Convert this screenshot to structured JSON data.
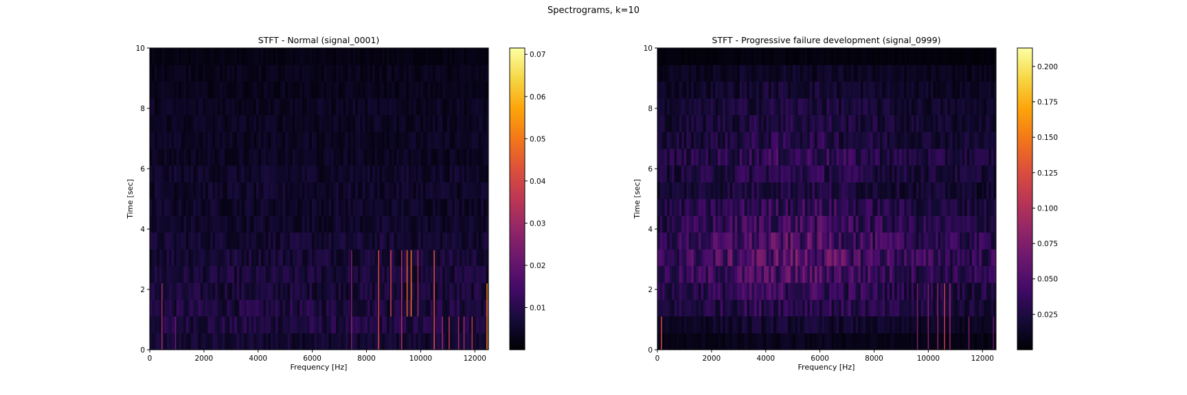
{
  "figure": {
    "title": "Spectrograms, k=10"
  },
  "chart_data": [
    {
      "type": "heatmap",
      "title": "STFT - Normal (signal_0001)",
      "xlabel": "Frequency [Hz]",
      "ylabel": "Time [sec]",
      "xlim": [
        0,
        12500
      ],
      "ylim": [
        0,
        10
      ],
      "xticks": [
        0,
        2000,
        4000,
        6000,
        8000,
        10000,
        12000
      ],
      "yticks": [
        0,
        2,
        4,
        6,
        8,
        10
      ],
      "colormap": "inferno",
      "colorbar": {
        "min": 0,
        "max": 0.0715,
        "ticks": [
          0.01,
          0.02,
          0.03,
          0.04,
          0.05,
          0.06,
          0.07
        ],
        "tick_labels": [
          "0.01",
          "0.02",
          "0.03",
          "0.04",
          "0.05",
          "0.06",
          "0.07"
        ]
      },
      "time_bins": [
        0.28,
        0.83,
        1.39,
        1.94,
        2.5,
        3.06,
        3.61,
        4.17,
        4.72,
        5.28,
        5.83,
        6.39,
        6.94,
        7.5,
        8.06,
        8.61,
        9.17,
        9.72
      ],
      "time_profile": [
        0.006,
        0.008,
        0.008,
        0.007,
        0.007,
        0.007,
        0.006,
        0.005,
        0.005,
        0.005,
        0.005,
        0.004,
        0.004,
        0.004,
        0.004,
        0.003,
        0.003,
        0.002
      ],
      "peaks": [
        {
          "freq": 450,
          "t0": 0,
          "t1": 2.2,
          "value": 0.03
        },
        {
          "freq": 950,
          "t0": 0,
          "t1": 1.1,
          "value": 0.022
        },
        {
          "freq": 7450,
          "t0": 0,
          "t1": 3.3,
          "value": 0.025
        },
        {
          "freq": 8450,
          "t0": 0,
          "t1": 3.3,
          "value": 0.04
        },
        {
          "freq": 8900,
          "t0": 1.1,
          "t1": 3.3,
          "value": 0.038
        },
        {
          "freq": 9300,
          "t0": 0,
          "t1": 3.3,
          "value": 0.032
        },
        {
          "freq": 9500,
          "t0": 1.1,
          "t1": 3.3,
          "value": 0.045
        },
        {
          "freq": 9650,
          "t0": 1.1,
          "t1": 3.3,
          "value": 0.048
        },
        {
          "freq": 9900,
          "t0": 1.1,
          "t1": 3.3,
          "value": 0.03
        },
        {
          "freq": 10500,
          "t0": 0,
          "t1": 3.3,
          "value": 0.042
        },
        {
          "freq": 10800,
          "t0": 0,
          "t1": 1.1,
          "value": 0.03
        },
        {
          "freq": 11050,
          "t0": 0,
          "t1": 1.1,
          "value": 0.035
        },
        {
          "freq": 11400,
          "t0": 0,
          "t1": 1.1,
          "value": 0.03
        },
        {
          "freq": 11600,
          "t0": 0,
          "t1": 1.1,
          "value": 0.03
        },
        {
          "freq": 11900,
          "t0": 0,
          "t1": 1.1,
          "value": 0.035
        },
        {
          "freq": 12450,
          "t0": 0,
          "t1": 2.2,
          "value": 0.05
        }
      ]
    },
    {
      "type": "heatmap",
      "title": "STFT - Progressive failure development (signal_0999)",
      "xlabel": "Frequency [Hz]",
      "ylabel": "Time [sec]",
      "xlim": [
        0,
        12500
      ],
      "ylim": [
        0,
        10
      ],
      "xticks": [
        0,
        2000,
        4000,
        6000,
        8000,
        10000,
        12000
      ],
      "yticks": [
        0,
        2,
        4,
        6,
        8,
        10
      ],
      "colormap": "inferno",
      "colorbar": {
        "min": 0,
        "max": 0.213,
        "ticks": [
          0.025,
          0.05,
          0.075,
          0.1,
          0.125,
          0.15,
          0.175,
          0.2
        ],
        "tick_labels": [
          "0.025",
          "0.050",
          "0.075",
          "0.100",
          "0.125",
          "0.150",
          "0.175",
          "0.200"
        ]
      },
      "time_bins": [
        0.28,
        0.83,
        1.39,
        1.94,
        2.5,
        3.06,
        3.61,
        4.17,
        4.72,
        5.28,
        5.83,
        6.39,
        6.94,
        7.5,
        8.06,
        8.61,
        9.17,
        9.72
      ],
      "time_profile": [
        0.008,
        0.015,
        0.028,
        0.032,
        0.04,
        0.045,
        0.04,
        0.035,
        0.03,
        0.022,
        0.026,
        0.03,
        0.024,
        0.022,
        0.02,
        0.016,
        0.012,
        0.004
      ],
      "peaks": [
        {
          "freq": 150,
          "t0": 0,
          "t1": 1.1,
          "value": 0.12
        },
        {
          "freq": 9600,
          "t0": 0,
          "t1": 2.2,
          "value": 0.07
        },
        {
          "freq": 10000,
          "t0": 0,
          "t1": 2.2,
          "value": 0.075
        },
        {
          "freq": 10350,
          "t0": 0,
          "t1": 2.2,
          "value": 0.08
        },
        {
          "freq": 10600,
          "t0": 0,
          "t1": 2.2,
          "value": 0.11
        },
        {
          "freq": 10800,
          "t0": 0,
          "t1": 2.2,
          "value": 0.085
        },
        {
          "freq": 11500,
          "t0": 0,
          "t1": 1.1,
          "value": 0.07
        },
        {
          "freq": 12400,
          "t0": 0,
          "t1": 1.1,
          "value": 0.06
        }
      ]
    }
  ]
}
